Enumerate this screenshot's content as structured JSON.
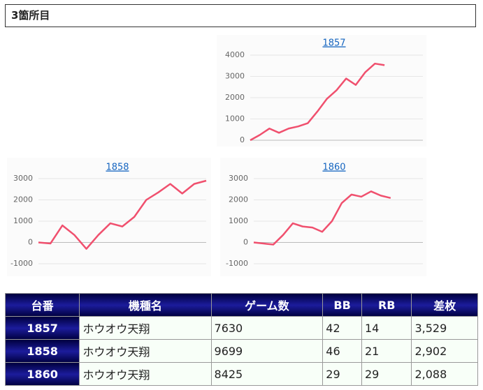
{
  "header": {
    "title": "3箇所目"
  },
  "chart_data": [
    {
      "type": "line",
      "title": "1857",
      "color": "#f0506e",
      "grid": true,
      "x": [
        0,
        1,
        2,
        3,
        4,
        5,
        6,
        7,
        8,
        9,
        10,
        11,
        12,
        13,
        14
      ],
      "xlim": [
        0,
        18
      ],
      "values": [
        0,
        250,
        550,
        350,
        550,
        650,
        800,
        1350,
        1950,
        2350,
        2900,
        2600,
        3200,
        3600,
        3529
      ],
      "ylim": [
        0,
        4000
      ],
      "yticks": [
        0,
        1000,
        2000,
        3000,
        4000
      ]
    },
    {
      "type": "line",
      "title": "1858",
      "color": "#f0506e",
      "grid": true,
      "x": [
        0,
        1,
        2,
        3,
        4,
        5,
        6,
        7,
        8,
        9,
        10,
        11,
        12,
        13,
        14
      ],
      "xlim": [
        0,
        14
      ],
      "values": [
        0,
        -50,
        800,
        350,
        -300,
        350,
        900,
        750,
        1200,
        2000,
        2350,
        2750,
        2300,
        2750,
        2902
      ],
      "ylim": [
        -1000,
        3000
      ],
      "yticks": [
        -1000,
        0,
        1000,
        2000,
        3000
      ]
    },
    {
      "type": "line",
      "title": "1860",
      "color": "#f0506e",
      "grid": true,
      "x": [
        0,
        1,
        2,
        3,
        4,
        5,
        6,
        7,
        8,
        9,
        10,
        11,
        12,
        13,
        14
      ],
      "xlim": [
        0,
        17.3
      ],
      "values": [
        0,
        -50,
        -100,
        350,
        900,
        750,
        700,
        500,
        1000,
        1850,
        2250,
        2150,
        2400,
        2200,
        2088
      ],
      "ylim": [
        -1000,
        3000
      ],
      "yticks": [
        -1000,
        0,
        1000,
        2000,
        3000
      ]
    }
  ],
  "table": {
    "columns": [
      "台番",
      "機種名",
      "ゲーム数",
      "BB",
      "RB",
      "差枚"
    ],
    "rows": [
      [
        "1857",
        "ホウオウ天翔",
        "7630",
        "42",
        "14",
        "3,529"
      ],
      [
        "1858",
        "ホウオウ天翔",
        "9699",
        "46",
        "21",
        "2,902"
      ],
      [
        "1860",
        "ホウオウ天翔",
        "8425",
        "29",
        "29",
        "2,088"
      ]
    ]
  }
}
